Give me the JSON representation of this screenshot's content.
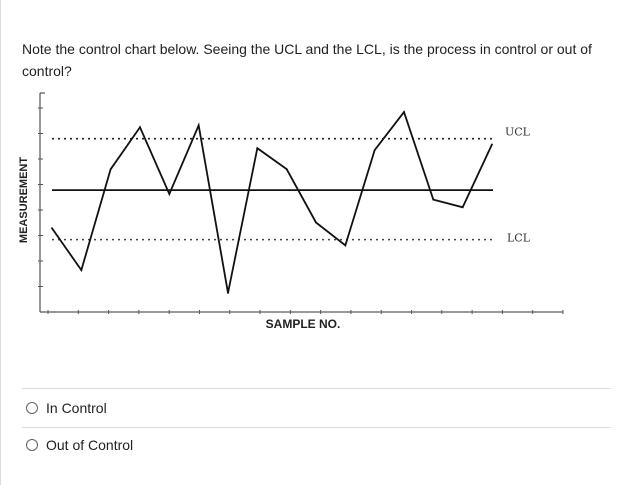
{
  "question": {
    "text": "Note the control chart below. Seeing the UCL and the LCL, is the process in control or out of control?"
  },
  "chart_data": {
    "type": "line",
    "ylabel": "MEASUREMENT",
    "xlabel": "SAMPLE NO.",
    "x": [
      1,
      2,
      3,
      4,
      5,
      6,
      7,
      8,
      9,
      10,
      11,
      12,
      13,
      14,
      15,
      16
    ],
    "values": [
      44,
      22,
      75,
      97,
      62,
      98,
      10,
      86,
      75,
      47,
      35,
      85,
      105,
      59,
      55,
      88
    ],
    "ylim": [
      0,
      115
    ],
    "xlim": [
      0.8,
      17.2
    ],
    "center_line": 64,
    "ucl": {
      "label": "UCL",
      "value": 91
    },
    "lcl": {
      "label": "LCL",
      "value": 38
    },
    "grid": false
  },
  "options": [
    {
      "label": "In Control"
    },
    {
      "label": "Out of Control"
    }
  ]
}
